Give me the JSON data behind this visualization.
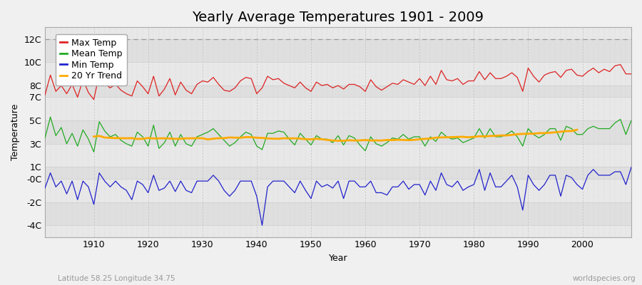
{
  "title": "Yearly Average Temperatures 1901 - 2009",
  "xlabel": "Year",
  "ylabel": "Temperature",
  "subtitle_left": "Latitude 58.25 Longitude 34.75",
  "subtitle_right": "worldspecies.org",
  "years": [
    1901,
    1902,
    1903,
    1904,
    1905,
    1906,
    1907,
    1908,
    1909,
    1910,
    1911,
    1912,
    1913,
    1914,
    1915,
    1916,
    1917,
    1918,
    1919,
    1920,
    1921,
    1922,
    1923,
    1924,
    1925,
    1926,
    1927,
    1928,
    1929,
    1930,
    1931,
    1932,
    1933,
    1934,
    1935,
    1936,
    1937,
    1938,
    1939,
    1940,
    1941,
    1942,
    1943,
    1944,
    1945,
    1946,
    1947,
    1948,
    1949,
    1950,
    1951,
    1952,
    1953,
    1954,
    1955,
    1956,
    1957,
    1958,
    1959,
    1960,
    1961,
    1962,
    1963,
    1964,
    1965,
    1966,
    1967,
    1968,
    1969,
    1970,
    1971,
    1972,
    1973,
    1974,
    1975,
    1976,
    1977,
    1978,
    1979,
    1980,
    1981,
    1982,
    1983,
    1984,
    1985,
    1986,
    1987,
    1988,
    1989,
    1990,
    1991,
    1992,
    1993,
    1994,
    1995,
    1996,
    1997,
    1998,
    1999,
    2000,
    2001,
    2002,
    2003,
    2004,
    2005,
    2006,
    2007,
    2008,
    2009
  ],
  "max_temp": [
    7.2,
    8.9,
    7.5,
    8.0,
    7.3,
    8.1,
    7.0,
    8.5,
    7.4,
    6.8,
    9.0,
    8.2,
    7.8,
    8.1,
    7.6,
    7.3,
    7.1,
    8.4,
    7.9,
    7.3,
    8.8,
    7.1,
    7.7,
    8.6,
    7.2,
    8.3,
    7.6,
    7.3,
    8.1,
    8.4,
    8.3,
    8.7,
    8.1,
    7.6,
    7.5,
    7.8,
    8.4,
    8.7,
    8.6,
    7.3,
    7.8,
    8.8,
    8.5,
    8.6,
    8.2,
    8.0,
    7.8,
    8.3,
    7.8,
    7.5,
    8.3,
    8.0,
    8.1,
    7.8,
    8.0,
    7.7,
    8.1,
    8.1,
    7.9,
    7.5,
    8.5,
    7.9,
    7.6,
    7.9,
    8.2,
    8.1,
    8.5,
    8.3,
    8.1,
    8.6,
    8.0,
    8.8,
    8.1,
    9.3,
    8.5,
    8.4,
    8.6,
    8.1,
    8.4,
    8.4,
    9.2,
    8.5,
    9.1,
    8.6,
    8.6,
    8.8,
    9.1,
    8.7,
    7.5,
    9.5,
    8.8,
    8.3,
    8.9,
    9.1,
    9.2,
    8.7,
    9.3,
    9.4,
    8.9,
    8.8,
    9.2,
    9.5,
    9.1,
    9.4,
    9.2,
    9.7,
    9.8,
    9.0,
    9.0
  ],
  "mean_temp": [
    3.5,
    5.3,
    3.7,
    4.4,
    3.0,
    3.9,
    2.8,
    4.2,
    3.4,
    2.3,
    4.9,
    4.1,
    3.6,
    3.8,
    3.3,
    3.0,
    2.8,
    4.0,
    3.6,
    2.8,
    4.6,
    2.6,
    3.1,
    4.0,
    2.8,
    3.8,
    3.0,
    2.8,
    3.6,
    3.8,
    4.0,
    4.3,
    3.8,
    3.3,
    2.8,
    3.1,
    3.6,
    4.0,
    3.8,
    2.8,
    2.5,
    3.9,
    3.9,
    4.1,
    4.0,
    3.4,
    2.9,
    3.9,
    3.4,
    2.9,
    3.7,
    3.4,
    3.4,
    3.1,
    3.7,
    2.9,
    3.7,
    3.5,
    2.9,
    2.4,
    3.6,
    3.0,
    2.8,
    3.1,
    3.5,
    3.4,
    3.8,
    3.4,
    3.6,
    3.6,
    2.8,
    3.6,
    3.2,
    4.0,
    3.6,
    3.4,
    3.5,
    3.1,
    3.3,
    3.5,
    4.3,
    3.5,
    4.3,
    3.6,
    3.6,
    3.8,
    4.1,
    3.6,
    2.8,
    4.3,
    3.8,
    3.5,
    3.8,
    4.3,
    4.3,
    3.3,
    4.5,
    4.3,
    3.8,
    3.8,
    4.3,
    4.5,
    4.3,
    4.3,
    4.3,
    4.8,
    5.1,
    3.8,
    5.0
  ],
  "min_temp": [
    -0.8,
    0.5,
    -0.7,
    -0.2,
    -1.3,
    -0.2,
    -1.8,
    -0.2,
    -0.7,
    -2.2,
    0.5,
    -0.2,
    -0.7,
    -0.2,
    -0.7,
    -1.0,
    -1.8,
    -0.2,
    -0.5,
    -1.2,
    0.3,
    -1.0,
    -0.8,
    -0.2,
    -1.1,
    -0.2,
    -1.0,
    -1.2,
    -0.2,
    -0.2,
    -0.2,
    0.3,
    -0.2,
    -1.0,
    -1.5,
    -1.0,
    -0.2,
    -0.2,
    -0.2,
    -1.5,
    -4.0,
    -0.7,
    -0.2,
    -0.2,
    -0.2,
    -0.7,
    -1.2,
    -0.2,
    -1.0,
    -1.7,
    -0.2,
    -0.7,
    -0.5,
    -0.8,
    -0.2,
    -1.7,
    -0.2,
    -0.2,
    -0.7,
    -0.7,
    -0.2,
    -1.2,
    -1.2,
    -1.4,
    -0.7,
    -0.7,
    -0.2,
    -0.9,
    -0.5,
    -0.5,
    -1.4,
    -0.2,
    -1.0,
    0.5,
    -0.5,
    -0.7,
    -0.2,
    -1.0,
    -0.7,
    -0.5,
    0.8,
    -1.0,
    0.5,
    -0.7,
    -0.7,
    -0.2,
    0.3,
    -0.7,
    -2.7,
    0.3,
    -0.5,
    -1.0,
    -0.5,
    0.3,
    0.3,
    -1.5,
    0.3,
    0.1,
    -0.5,
    -0.9,
    0.3,
    0.8,
    0.3,
    0.3,
    0.3,
    0.6,
    0.6,
    -0.5,
    1.0
  ],
  "ylim_min": -5.0,
  "ylim_max": 13.0,
  "ytick_positions": [
    -4,
    -2,
    0,
    1,
    3,
    5,
    7,
    8,
    10,
    12
  ],
  "ytick_labels": [
    "-4C",
    "-2C",
    "-0C",
    "1C",
    "3C",
    "5C",
    "7C",
    "8C",
    "10C",
    "12C"
  ],
  "xticks": [
    1910,
    1920,
    1930,
    1940,
    1950,
    1960,
    1970,
    1980,
    1990,
    2000
  ],
  "max_color": "#dd2222",
  "mean_color": "#22aa22",
  "min_color": "#2222cc",
  "trend_color": "#ffaa00",
  "bg_color": "#f0f0f0",
  "band_color_dark": "#e0e0e0",
  "band_color_light": "#ebebeb",
  "title_fontsize": 14,
  "axis_fontsize": 9,
  "legend_fontsize": 9
}
